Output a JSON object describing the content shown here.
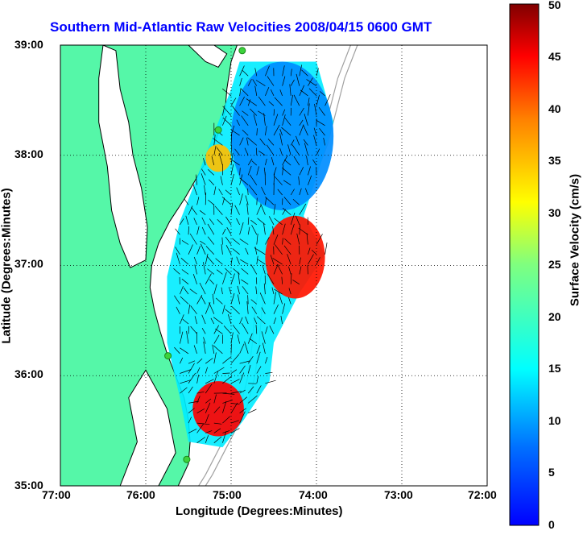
{
  "title": "Southern Mid-Atlantic Raw Velocities 2008/04/15 0600 GMT",
  "xlabel": "Longitude (Degrees:Minutes)",
  "ylabel": "Latitude (Degrees:Minutes)",
  "colorbar": {
    "label": "Surface Velocity (cm/s)",
    "range": [
      0,
      50
    ],
    "ticks": [
      "0",
      "5",
      "10",
      "15",
      "20",
      "25",
      "30",
      "35",
      "40",
      "45",
      "50"
    ],
    "colormap": "jet"
  },
  "axes": {
    "x_range": [
      -77.0,
      -72.0
    ],
    "y_range": [
      35.0,
      39.0
    ],
    "x_ticks": [
      {
        "value": -77.0,
        "label": "77:00"
      },
      {
        "value": -76.0,
        "label": "76:00"
      },
      {
        "value": -75.0,
        "label": "75:00"
      },
      {
        "value": -74.0,
        "label": "74:00"
      },
      {
        "value": -73.0,
        "label": "73:00"
      },
      {
        "value": -72.0,
        "label": "72:00"
      }
    ],
    "y_ticks": [
      {
        "value": 39.0,
        "label": "39:00"
      },
      {
        "value": 38.0,
        "label": "38:00"
      },
      {
        "value": 37.0,
        "label": "37:00"
      },
      {
        "value": 36.0,
        "label": "36:00"
      }
    ],
    "y_bottom_label": "35:00",
    "grid": true
  },
  "colors": {
    "land": "#55f7a8",
    "water": "#ffffff",
    "coast": "#000000",
    "bathymetry": "#a0a0a0",
    "title": "#0000ff",
    "radar_site": "#3cd23c"
  },
  "radar_sites": [
    {
      "lon": -74.87,
      "lat": 38.95
    },
    {
      "lon": -75.15,
      "lat": 38.23
    },
    {
      "lon": -75.74,
      "lat": 36.18
    },
    {
      "lon": -75.52,
      "lat": 35.24
    }
  ],
  "velocity_regions": [
    {
      "name": "northern",
      "lon_range": [
        -75.0,
        -73.8
      ],
      "lat_range": [
        37.5,
        38.85
      ],
      "speed": 9
    },
    {
      "name": "delaware-bay-mouth",
      "lon_range": [
        -75.3,
        -75.0
      ],
      "lat_range": [
        37.85,
        38.1
      ],
      "speed": 35
    },
    {
      "name": "central-east",
      "lon_range": [
        -74.6,
        -73.9
      ],
      "lat_range": [
        36.7,
        37.45
      ],
      "speed": 44
    },
    {
      "name": "southern-shelf",
      "lon_range": [
        -75.45,
        -74.85
      ],
      "lat_range": [
        35.45,
        35.95
      ],
      "speed": 45
    }
  ]
}
